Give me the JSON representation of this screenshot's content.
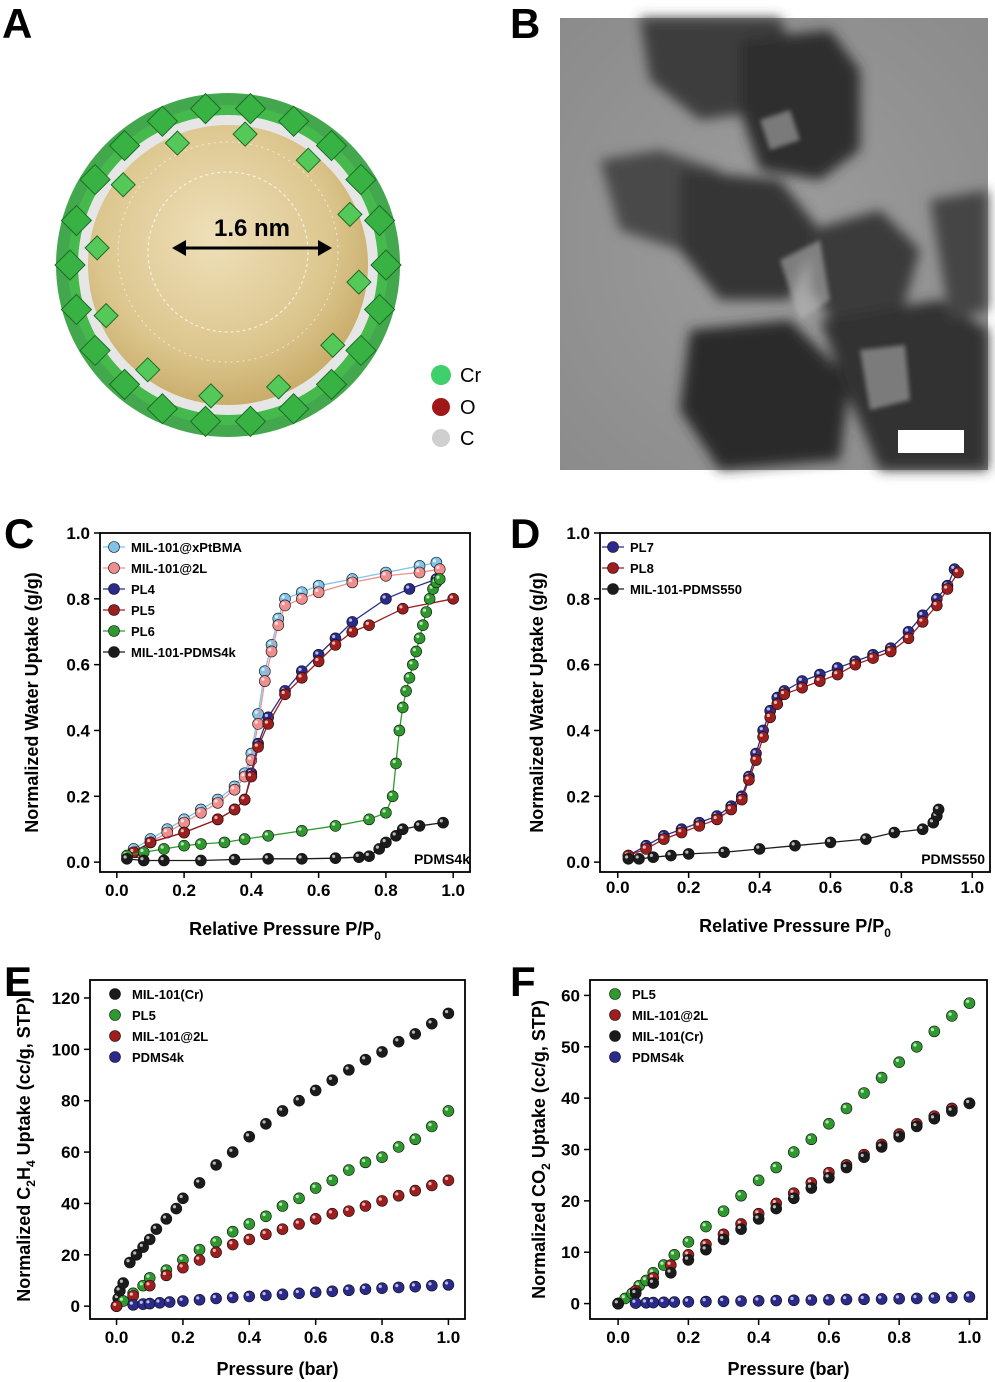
{
  "panels": {
    "A": {
      "label": "A",
      "pore_label": "1.6 nm",
      "key": [
        {
          "label": "Cr",
          "color": "#3fcf6b"
        },
        {
          "label": "O",
          "color": "#a01818"
        },
        {
          "label": "C",
          "color": "#cfcfcf"
        }
      ]
    },
    "B": {
      "label": "B"
    }
  },
  "chart_data": [
    {
      "panel": "C",
      "type": "scatter",
      "xlabel": "Relative Pressure P/P",
      "xlabel_sub": "0",
      "ylabel": "Normalized Water Uptake (g/g)",
      "xlim": [
        -0.05,
        1.05
      ],
      "ylim": [
        -0.03,
        1.0
      ],
      "xticks": [
        0.0,
        0.2,
        0.4,
        0.6,
        0.8,
        1.0
      ],
      "yticks": [
        0.0,
        0.2,
        0.4,
        0.6,
        0.8,
        1.0
      ],
      "annotation": "PDMS4k",
      "legend_position": "top-left",
      "series": [
        {
          "name": "MIL-101@xPtBMA",
          "color": "#7ec3ea",
          "line": true,
          "x": [
            0.05,
            0.1,
            0.15,
            0.2,
            0.25,
            0.3,
            0.35,
            0.38,
            0.4,
            0.42,
            0.44,
            0.46,
            0.48,
            0.5,
            0.55,
            0.6,
            0.7,
            0.8,
            0.9,
            0.95
          ],
          "y": [
            0.04,
            0.07,
            0.1,
            0.13,
            0.16,
            0.19,
            0.23,
            0.27,
            0.33,
            0.45,
            0.58,
            0.66,
            0.74,
            0.8,
            0.82,
            0.84,
            0.86,
            0.88,
            0.9,
            0.91
          ]
        },
        {
          "name": "MIL-101@2L",
          "color": "#ef8e8e",
          "line": true,
          "x": [
            0.06,
            0.1,
            0.15,
            0.2,
            0.25,
            0.3,
            0.35,
            0.38,
            0.4,
            0.42,
            0.44,
            0.46,
            0.48,
            0.5,
            0.55,
            0.6,
            0.7,
            0.8,
            0.9,
            0.96
          ],
          "y": [
            0.03,
            0.06,
            0.09,
            0.12,
            0.15,
            0.18,
            0.22,
            0.26,
            0.31,
            0.42,
            0.55,
            0.64,
            0.72,
            0.78,
            0.8,
            0.82,
            0.85,
            0.87,
            0.88,
            0.89
          ]
        },
        {
          "name": "PL4",
          "color": "#2a2a8c",
          "line": true,
          "x": [
            0.05,
            0.1,
            0.2,
            0.3,
            0.35,
            0.38,
            0.4,
            0.42,
            0.45,
            0.5,
            0.55,
            0.6,
            0.65,
            0.7,
            0.8,
            0.87,
            0.95
          ],
          "y": [
            0.03,
            0.06,
            0.09,
            0.13,
            0.16,
            0.19,
            0.27,
            0.36,
            0.44,
            0.52,
            0.58,
            0.63,
            0.68,
            0.73,
            0.8,
            0.83,
            0.86
          ]
        },
        {
          "name": "PL5",
          "color": "#9e1d1d",
          "line": true,
          "x": [
            0.05,
            0.1,
            0.2,
            0.3,
            0.35,
            0.38,
            0.4,
            0.42,
            0.45,
            0.5,
            0.55,
            0.6,
            0.65,
            0.7,
            0.75,
            0.85,
            1.0
          ],
          "y": [
            0.03,
            0.06,
            0.09,
            0.13,
            0.16,
            0.19,
            0.26,
            0.35,
            0.42,
            0.51,
            0.56,
            0.61,
            0.66,
            0.7,
            0.72,
            0.77,
            0.8
          ]
        },
        {
          "name": "PL6",
          "color": "#2e9a2e",
          "line": true,
          "x": [
            0.03,
            0.08,
            0.14,
            0.2,
            0.25,
            0.32,
            0.38,
            0.45,
            0.55,
            0.65,
            0.75,
            0.8,
            0.82,
            0.83,
            0.84,
            0.85,
            0.86,
            0.87,
            0.88,
            0.89,
            0.9,
            0.91,
            0.92,
            0.93,
            0.94,
            0.95,
            0.96
          ],
          "y": [
            0.02,
            0.03,
            0.04,
            0.05,
            0.055,
            0.06,
            0.07,
            0.08,
            0.095,
            0.11,
            0.13,
            0.15,
            0.2,
            0.3,
            0.4,
            0.47,
            0.52,
            0.56,
            0.6,
            0.64,
            0.68,
            0.72,
            0.76,
            0.8,
            0.83,
            0.85,
            0.86
          ]
        },
        {
          "name": "MIL-101-PDMS4k",
          "color": "#1b1b1b",
          "line": true,
          "x": [
            0.03,
            0.08,
            0.14,
            0.25,
            0.35,
            0.45,
            0.55,
            0.65,
            0.72,
            0.75,
            0.78,
            0.8,
            0.83,
            0.85,
            0.9,
            0.97
          ],
          "y": [
            0.01,
            0.005,
            0.005,
            0.005,
            0.008,
            0.01,
            0.01,
            0.012,
            0.015,
            0.018,
            0.04,
            0.06,
            0.08,
            0.1,
            0.11,
            0.12
          ]
        }
      ]
    },
    {
      "panel": "D",
      "type": "scatter",
      "xlabel": "Relative Pressure P/P",
      "xlabel_sub": "0",
      "ylabel": "Normalized Water Uptake (g/g)",
      "xlim": [
        -0.05,
        1.05
      ],
      "ylim": [
        -0.03,
        1.0
      ],
      "xticks": [
        0.0,
        0.2,
        0.4,
        0.6,
        0.8,
        1.0
      ],
      "yticks": [
        0.0,
        0.2,
        0.4,
        0.6,
        0.8,
        1.0
      ],
      "annotation": "PDMS550",
      "legend_position": "top-left",
      "series": [
        {
          "name": "PL7",
          "color": "#2a2a8c",
          "line": true,
          "x": [
            0.03,
            0.08,
            0.13,
            0.18,
            0.23,
            0.28,
            0.32,
            0.35,
            0.37,
            0.39,
            0.41,
            0.43,
            0.45,
            0.47,
            0.52,
            0.57,
            0.62,
            0.67,
            0.72,
            0.77,
            0.82,
            0.86,
            0.9,
            0.93,
            0.95
          ],
          "y": [
            0.02,
            0.05,
            0.08,
            0.1,
            0.12,
            0.14,
            0.17,
            0.2,
            0.26,
            0.33,
            0.4,
            0.46,
            0.5,
            0.52,
            0.55,
            0.57,
            0.59,
            0.61,
            0.63,
            0.65,
            0.7,
            0.75,
            0.8,
            0.84,
            0.89
          ]
        },
        {
          "name": "PL8",
          "color": "#9e1d1d",
          "line": true,
          "x": [
            0.03,
            0.08,
            0.13,
            0.18,
            0.23,
            0.28,
            0.32,
            0.35,
            0.37,
            0.39,
            0.41,
            0.43,
            0.45,
            0.47,
            0.52,
            0.57,
            0.62,
            0.67,
            0.72,
            0.77,
            0.82,
            0.86,
            0.9,
            0.93,
            0.96
          ],
          "y": [
            0.02,
            0.04,
            0.07,
            0.09,
            0.11,
            0.13,
            0.16,
            0.19,
            0.25,
            0.31,
            0.38,
            0.44,
            0.48,
            0.51,
            0.53,
            0.55,
            0.57,
            0.6,
            0.62,
            0.64,
            0.68,
            0.73,
            0.78,
            0.83,
            0.88
          ]
        },
        {
          "name": "MIL-101-PDMS550",
          "color": "#1b1b1b",
          "line": true,
          "x": [
            0.03,
            0.06,
            0.1,
            0.15,
            0.2,
            0.3,
            0.4,
            0.5,
            0.6,
            0.7,
            0.78,
            0.86,
            0.89,
            0.9,
            0.905
          ],
          "y": [
            0.01,
            0.01,
            0.015,
            0.02,
            0.025,
            0.03,
            0.04,
            0.05,
            0.06,
            0.07,
            0.09,
            0.1,
            0.12,
            0.14,
            0.16
          ]
        }
      ]
    },
    {
      "panel": "E",
      "type": "scatter",
      "xlabel": "Pressure (bar)",
      "ylabel_parts": [
        "Normalized C",
        "2",
        "H",
        "4",
        " Uptake (cc/g, STP)"
      ],
      "xlim": [
        -0.08,
        1.05
      ],
      "ylim": [
        -5,
        127
      ],
      "xticks": [
        0.0,
        0.2,
        0.4,
        0.6,
        0.8,
        1.0
      ],
      "yticks": [
        0,
        20,
        40,
        60,
        80,
        100,
        120
      ],
      "legend_position": "top-left",
      "series": [
        {
          "name": "MIL-101(Cr)",
          "color": "#1b1b1b",
          "line": false,
          "x": [
            0.0,
            0.005,
            0.01,
            0.02,
            0.04,
            0.06,
            0.08,
            0.1,
            0.12,
            0.15,
            0.18,
            0.2,
            0.25,
            0.3,
            0.35,
            0.4,
            0.45,
            0.5,
            0.55,
            0.6,
            0.65,
            0.7,
            0.75,
            0.8,
            0.85,
            0.9,
            0.95,
            1.0
          ],
          "y": [
            0,
            3,
            6,
            9,
            17,
            20,
            23,
            26,
            30,
            34,
            38,
            42,
            48,
            55,
            60,
            66,
            71,
            76,
            80,
            84,
            88,
            92,
            96,
            99,
            103,
            106,
            110,
            114
          ]
        },
        {
          "name": "PL5",
          "color": "#2e9a2e",
          "line": false,
          "x": [
            0.0,
            0.02,
            0.05,
            0.08,
            0.1,
            0.15,
            0.2,
            0.25,
            0.3,
            0.35,
            0.4,
            0.45,
            0.5,
            0.55,
            0.6,
            0.65,
            0.7,
            0.75,
            0.8,
            0.85,
            0.9,
            0.95,
            1.0
          ],
          "y": [
            0,
            2,
            5,
            8,
            11,
            14,
            18,
            22,
            25,
            29,
            32,
            35,
            39,
            42,
            46,
            49,
            53,
            56,
            58,
            62,
            65,
            70,
            76
          ]
        },
        {
          "name": "MIL-101@2L",
          "color": "#9e1d1d",
          "line": false,
          "x": [
            0.0,
            0.05,
            0.1,
            0.15,
            0.2,
            0.25,
            0.3,
            0.35,
            0.4,
            0.45,
            0.5,
            0.55,
            0.6,
            0.65,
            0.7,
            0.75,
            0.8,
            0.85,
            0.9,
            0.95,
            1.0
          ],
          "y": [
            0,
            4,
            8,
            12,
            15,
            18,
            21,
            24,
            26,
            28,
            30,
            32,
            34,
            36,
            37,
            39,
            41,
            43,
            45,
            47,
            49
          ]
        },
        {
          "name": "PDMS4k",
          "color": "#2a2a8c",
          "line": false,
          "x": [
            0.05,
            0.08,
            0.1,
            0.13,
            0.16,
            0.2,
            0.25,
            0.3,
            0.35,
            0.4,
            0.45,
            0.5,
            0.55,
            0.6,
            0.65,
            0.7,
            0.75,
            0.8,
            0.85,
            0.9,
            0.95,
            1.0
          ],
          "y": [
            0.5,
            0.8,
            1,
            1.3,
            1.6,
            2,
            2.5,
            3,
            3.4,
            3.8,
            4.2,
            4.6,
            5,
            5.4,
            5.8,
            6.2,
            6.6,
            7,
            7.3,
            7.6,
            8,
            8.3
          ]
        }
      ]
    },
    {
      "panel": "F",
      "type": "scatter",
      "xlabel": "Pressure (bar)",
      "ylabel_parts": [
        "Normalized CO",
        "2",
        " Uptake (cc/g, STP)"
      ],
      "xlim": [
        -0.08,
        1.05
      ],
      "ylim": [
        -3,
        63
      ],
      "xticks": [
        0.0,
        0.2,
        0.4,
        0.6,
        0.8,
        1.0
      ],
      "yticks": [
        0,
        10,
        20,
        30,
        40,
        50,
        60
      ],
      "legend_position": "top-left",
      "series": [
        {
          "name": "PL5",
          "color": "#2e9a2e",
          "line": false,
          "x": [
            0.0,
            0.02,
            0.04,
            0.06,
            0.08,
            0.1,
            0.13,
            0.16,
            0.2,
            0.25,
            0.3,
            0.35,
            0.4,
            0.45,
            0.5,
            0.55,
            0.6,
            0.65,
            0.7,
            0.75,
            0.8,
            0.85,
            0.9,
            0.95,
            1.0
          ],
          "y": [
            0,
            1,
            2,
            3.5,
            4.5,
            6,
            7.5,
            9.5,
            12,
            15,
            18,
            21,
            24,
            26.5,
            29.5,
            32,
            35,
            38,
            41,
            44,
            47,
            50,
            53,
            56,
            58.5
          ]
        },
        {
          "name": "MIL-101@2L",
          "color": "#9e1d1d",
          "line": false,
          "x": [
            0.0,
            0.05,
            0.1,
            0.15,
            0.2,
            0.25,
            0.3,
            0.35,
            0.4,
            0.45,
            0.5,
            0.55,
            0.6,
            0.65,
            0.7,
            0.75,
            0.8,
            0.85,
            0.9,
            0.95,
            1.0
          ],
          "y": [
            0,
            2.5,
            5,
            7.5,
            9.5,
            11.5,
            13.5,
            15.5,
            17.5,
            19.5,
            21.5,
            23.5,
            25.5,
            27,
            29,
            31,
            33,
            35,
            36.5,
            38,
            39
          ]
        },
        {
          "name": "MIL-101(Cr)",
          "color": "#1b1b1b",
          "line": false,
          "x": [
            0.0,
            0.05,
            0.1,
            0.15,
            0.2,
            0.25,
            0.3,
            0.35,
            0.4,
            0.45,
            0.5,
            0.55,
            0.6,
            0.65,
            0.7,
            0.75,
            0.8,
            0.85,
            0.9,
            0.95,
            1.0
          ],
          "y": [
            0,
            2,
            4,
            6,
            8.5,
            10.5,
            12.5,
            14.5,
            16.5,
            18.5,
            20.5,
            22.5,
            24.5,
            26.5,
            28.5,
            30.5,
            32.5,
            34.5,
            36,
            37.5,
            39
          ]
        },
        {
          "name": "PDMS4k",
          "color": "#2a2a8c",
          "line": false,
          "x": [
            0.05,
            0.08,
            0.1,
            0.13,
            0.16,
            0.2,
            0.25,
            0.3,
            0.35,
            0.4,
            0.45,
            0.5,
            0.55,
            0.6,
            0.65,
            0.7,
            0.75,
            0.8,
            0.85,
            0.9,
            0.95,
            1.0
          ],
          "y": [
            0.1,
            0.15,
            0.2,
            0.25,
            0.3,
            0.35,
            0.4,
            0.45,
            0.5,
            0.55,
            0.6,
            0.65,
            0.7,
            0.75,
            0.8,
            0.85,
            0.9,
            0.95,
            1.0,
            1.1,
            1.2,
            1.3
          ]
        }
      ]
    }
  ]
}
